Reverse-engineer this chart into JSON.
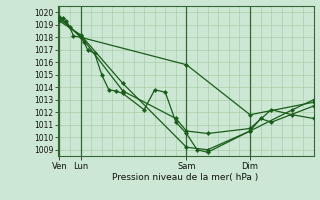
{
  "bg_color": "#cce8d4",
  "grid_color": "#aacfaa",
  "line_color": "#1a5c1a",
  "marker_color": "#1a5c1a",
  "ylabel_values": [
    1009,
    1010,
    1011,
    1012,
    1013,
    1014,
    1015,
    1016,
    1017,
    1018,
    1019,
    1020
  ],
  "ymin": 1008.5,
  "ymax": 1020.5,
  "xlabel": "Pression niveau de la mer( hPa )",
  "day_labels": [
    "Ven",
    "Lun",
    "Sam",
    "Dim"
  ],
  "day_positions": [
    0,
    12,
    72,
    108
  ],
  "xmin": -1,
  "xmax": 144,
  "series": [
    {
      "x": [
        0,
        2,
        4,
        6,
        8,
        12,
        14,
        16,
        20,
        24,
        28,
        32,
        36,
        48,
        54,
        60,
        66,
        72,
        78,
        84,
        108,
        114,
        120,
        144
      ],
      "y": [
        1019.6,
        1019.5,
        1019.3,
        1018.8,
        1018.1,
        1018.0,
        1017.6,
        1017.0,
        1016.7,
        1015.0,
        1013.8,
        1013.7,
        1013.5,
        1012.2,
        1013.8,
        1013.6,
        1011.2,
        1010.3,
        1009.0,
        1008.8,
        1010.5,
        1011.5,
        1011.2,
        1012.5
      ]
    },
    {
      "x": [
        0,
        12,
        72,
        108,
        144
      ],
      "y": [
        1019.6,
        1018.0,
        1015.8,
        1011.8,
        1012.8
      ]
    },
    {
      "x": [
        0,
        12,
        36,
        72,
        84,
        108,
        132,
        144
      ],
      "y": [
        1019.3,
        1018.2,
        1014.3,
        1009.2,
        1009.0,
        1010.5,
        1012.2,
        1013.0
      ]
    },
    {
      "x": [
        0,
        12,
        36,
        66,
        72,
        84,
        108,
        120,
        132,
        144
      ],
      "y": [
        1019.5,
        1018.1,
        1013.7,
        1011.5,
        1010.5,
        1010.3,
        1010.7,
        1012.2,
        1011.8,
        1011.5
      ]
    }
  ]
}
